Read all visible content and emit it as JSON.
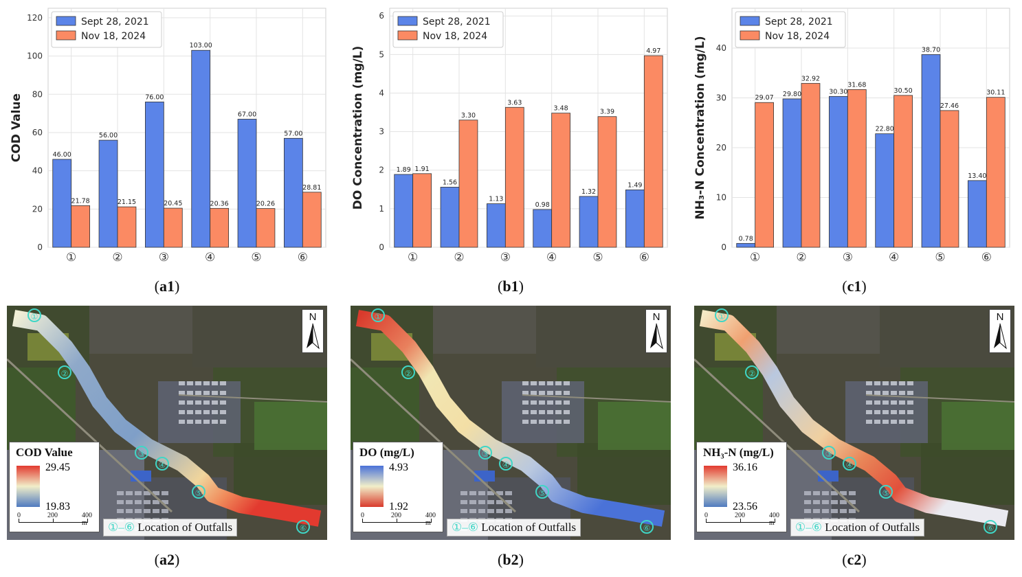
{
  "captions": {
    "a1": {
      "letter": "a1"
    },
    "b1": {
      "letter": "b1"
    },
    "c1": {
      "letter": "c1"
    },
    "a2": {
      "letter": "a2"
    },
    "b2": {
      "letter": "b2"
    },
    "c2": {
      "letter": "c2"
    }
  },
  "colors": {
    "series1": "#5b84e8",
    "series2": "#fb8a63"
  },
  "chart_data": [
    {
      "type": "bar",
      "categories": [
        "①",
        "②",
        "③",
        "④",
        "⑤",
        "⑥"
      ],
      "series": [
        {
          "name": "Sept 28, 2021",
          "values": [
            46.0,
            56.0,
            76.0,
            103.0,
            67.0,
            57.0
          ],
          "labels": [
            "46.00",
            "56.00",
            "76.00",
            "103.00",
            "67.00",
            "57.00"
          ]
        },
        {
          "name": "Nov 18, 2024",
          "values": [
            21.78,
            21.15,
            20.45,
            20.36,
            20.26,
            28.81
          ],
          "labels": [
            "21.78",
            "21.15",
            "20.45",
            "20.36",
            "20.26",
            "28.81"
          ]
        }
      ],
      "ylabel": "COD Value",
      "ylim": [
        0,
        125
      ],
      "yticks": [
        0,
        20,
        40,
        60,
        80,
        100,
        120
      ],
      "grid": true,
      "legend": "top-left"
    },
    {
      "type": "bar",
      "categories": [
        "①",
        "②",
        "③",
        "④",
        "⑤",
        "⑥"
      ],
      "series": [
        {
          "name": "Sept 28, 2021",
          "values": [
            1.89,
            1.56,
            1.13,
            0.98,
            1.32,
            1.49
          ],
          "labels": [
            "1.89",
            "1.56",
            "1.13",
            "0.98",
            "1.32",
            "1.49"
          ]
        },
        {
          "name": "Nov 18, 2024",
          "values": [
            1.91,
            3.3,
            3.63,
            3.48,
            3.39,
            4.97
          ],
          "labels": [
            "1.91",
            "3.30",
            "3.63",
            "3.48",
            "3.39",
            "4.97"
          ]
        }
      ],
      "ylabel": "DO Concentration (mg/L)",
      "ylim": [
        0,
        6.2
      ],
      "yticks": [
        0,
        1,
        2,
        3,
        4,
        5,
        6
      ],
      "grid": true,
      "legend": "top-left"
    },
    {
      "type": "bar",
      "categories": [
        "①",
        "②",
        "③",
        "④",
        "⑤",
        "⑥"
      ],
      "series": [
        {
          "name": "Sept 28, 2021",
          "values": [
            0.78,
            29.8,
            30.3,
            22.8,
            38.7,
            13.4
          ],
          "labels": [
            "0.78",
            "29.80",
            "30.30",
            "22.80",
            "38.70",
            "13.40"
          ]
        },
        {
          "name": "Nov 18, 2024",
          "values": [
            29.07,
            32.92,
            31.68,
            30.5,
            27.46,
            30.11
          ],
          "labels": [
            "29.07",
            "32.92",
            "31.68",
            "30.50",
            "27.46",
            "30.11"
          ]
        }
      ],
      "ylabel": "NH₃-N Concentration (mg/L)",
      "ylim": [
        0,
        48
      ],
      "yticks": [
        0,
        10,
        20,
        30,
        40
      ],
      "grid": true,
      "legend": "top-left"
    }
  ],
  "maps": [
    {
      "legend_title": "COD Value",
      "max": "29.45",
      "min": "19.83",
      "palette": "red-yellow-blue"
    },
    {
      "legend_title": "DO (mg/L)",
      "max": "4.93",
      "min": "1.92",
      "palette": "blue-yellow-red"
    },
    {
      "legend_title": "NH₃-N (mg/L)",
      "max": "36.16",
      "min": "23.56",
      "palette": "red-yellow-blue"
    }
  ],
  "map_common": {
    "north": "N",
    "scale_labels": [
      "0",
      "200",
      "400 m"
    ],
    "outfall_range": "①–⑥",
    "outfall_text": "Location of  Outfalls",
    "markers": [
      "①",
      "②",
      "③",
      "④",
      "⑤",
      "⑥"
    ]
  }
}
